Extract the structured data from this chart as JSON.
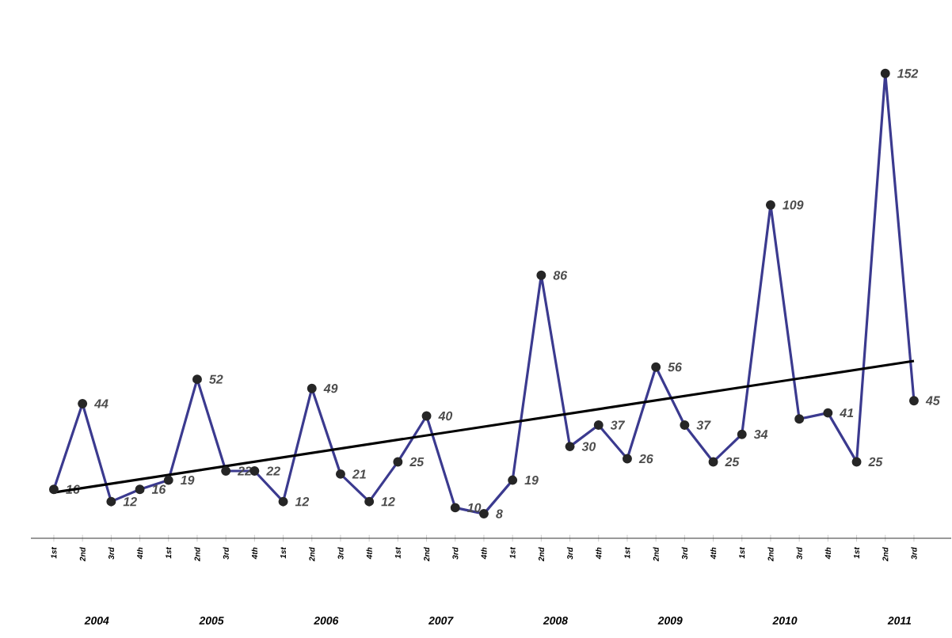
{
  "chart_data": {
    "type": "line",
    "categories": [
      "1st",
      "2nd",
      "3rd",
      "4th",
      "1st",
      "2nd",
      "3rd",
      "4th",
      "1st",
      "2nd",
      "3rd",
      "4th",
      "1st",
      "2nd",
      "3rd",
      "4th",
      "1st",
      "2nd",
      "3rd",
      "4th",
      "1st",
      "2nd",
      "3rd",
      "4th",
      "1st",
      "2nd",
      "3rd",
      "4th",
      "1st",
      "2nd",
      "3rd"
    ],
    "annotations": [
      "2004",
      "2005",
      "2006",
      "2007",
      "2008",
      "2009",
      "2010",
      "2011"
    ],
    "marker": "circle",
    "line_style": "solid",
    "grid": false,
    "series": [
      {
        "color": "#3b3a8f",
        "values": [
          16,
          44,
          12,
          16,
          19,
          52,
          22,
          22,
          12,
          49,
          21,
          12,
          25,
          40,
          10,
          8,
          19,
          86,
          30,
          37,
          26,
          56,
          37,
          25,
          34,
          109,
          39,
          41,
          25,
          152,
          45
        ],
        "value_labels": [
          "16",
          "44",
          "12",
          "16",
          "19",
          "52",
          "22",
          "22",
          "12",
          "49",
          "21",
          "12",
          "25",
          "40",
          "10",
          "8",
          "19",
          "86",
          "30",
          "37",
          "26",
          "56",
          "37",
          "25",
          "34",
          "109",
          null,
          "41",
          "25",
          "152",
          "45"
        ]
      },
      {
        "type": "line",
        "color": "#000000",
        "marker": "none",
        "values": [
          15,
          null,
          null,
          null,
          null,
          null,
          null,
          null,
          null,
          null,
          null,
          null,
          null,
          null,
          null,
          null,
          null,
          null,
          null,
          null,
          null,
          null,
          null,
          null,
          null,
          null,
          null,
          null,
          null,
          null,
          58
        ]
      }
    ]
  }
}
